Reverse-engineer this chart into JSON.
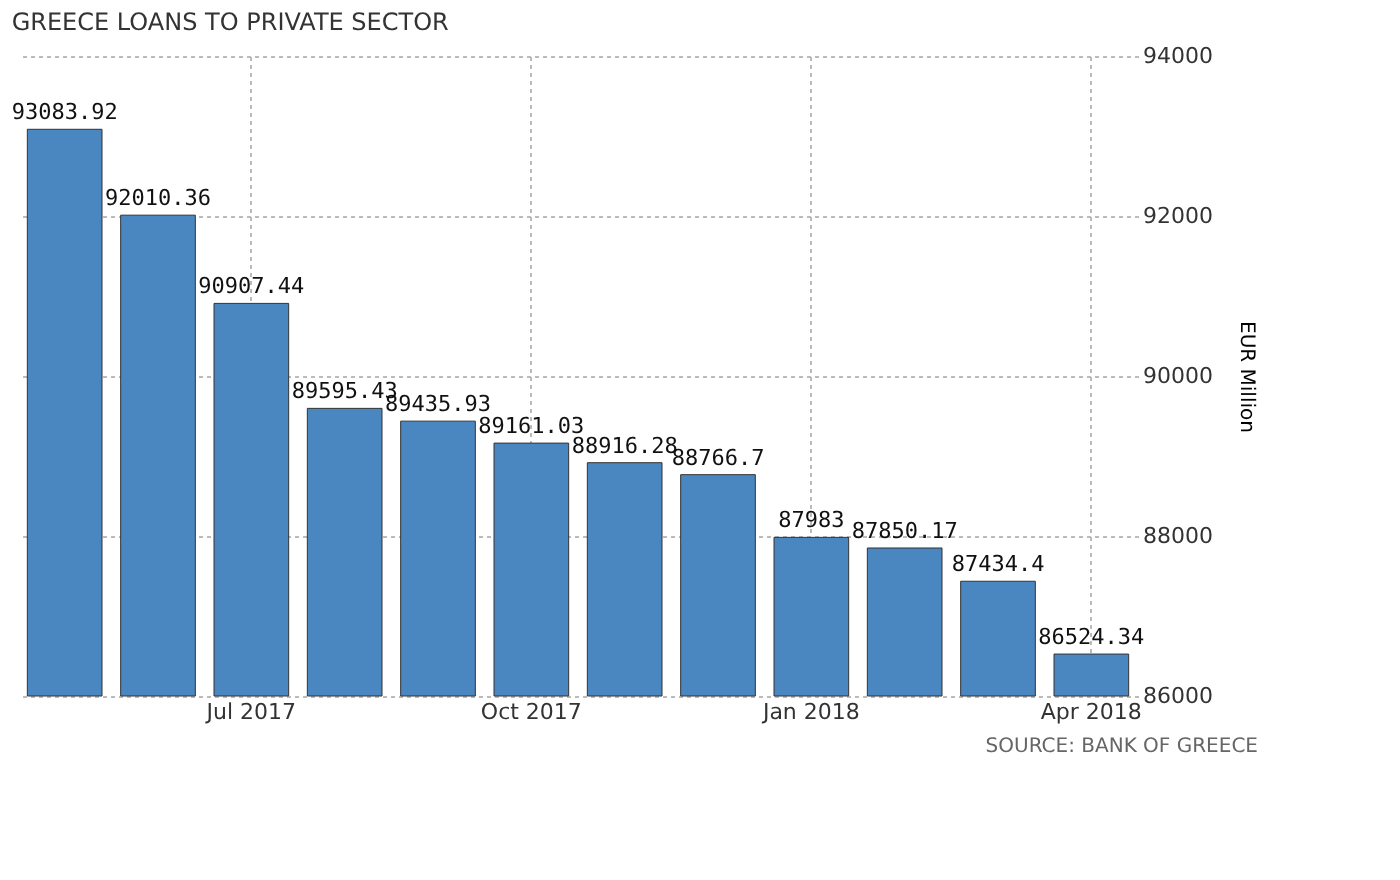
{
  "chart_data": {
    "type": "bar",
    "title": "GREECE LOANS TO PRIVATE SECTOR",
    "categories": [
      null,
      null,
      "Jul 2017",
      null,
      null,
      "Oct 2017",
      null,
      null,
      "Jan 2018",
      null,
      null,
      "Apr 2018"
    ],
    "values": [
      93083.92,
      92010.36,
      90907.44,
      89595.43,
      89435.93,
      89161.03,
      88916.28,
      88766.7,
      87983,
      87850.17,
      87434.4,
      86524.34
    ],
    "color": "#4a86c0",
    "ylabel": "EUR Million",
    "ylim": [
      86000,
      94000
    ],
    "yticks": [
      86000,
      88000,
      90000,
      92000,
      94000
    ],
    "grid": true,
    "data_labels": true,
    "annotations": [
      "SOURCE: BANK OF GREECE"
    ]
  }
}
